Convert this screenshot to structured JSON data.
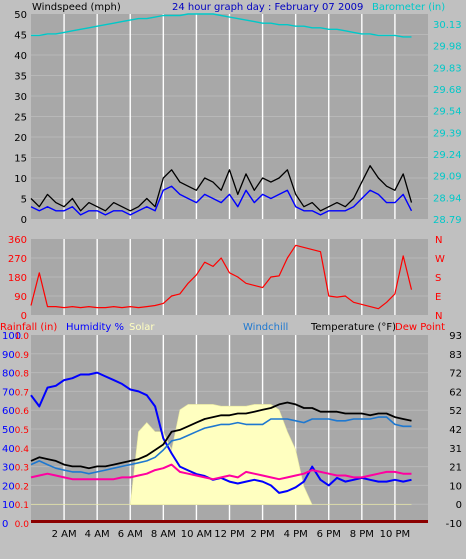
{
  "title": "24 hour graph day : February 07 2009",
  "colors": {
    "background": "#c0c0c0",
    "plot_bg": "#a8a8a8",
    "grid": "#ffffff",
    "barometer": "#00c8c8",
    "wind_avg": "#0000ff",
    "wind_gust": "#000000",
    "wind_dir": "#ff0000",
    "rainfall": "#ff0000",
    "humidity": "#0000ff",
    "solar": "#ffffc0",
    "windchill": "#1e78d0",
    "temperature": "#000000",
    "dew_point": "#ff00a0"
  },
  "chart_data": [
    {
      "type": "line",
      "ylabel": "Windspeed (mph)",
      "y2label": "Barometer (in)",
      "ylim": [
        0,
        50
      ],
      "yticks": [
        "50",
        "45",
        "40",
        "35",
        "30",
        "25",
        "20",
        "15",
        "10",
        "5",
        "0"
      ],
      "y2ticks": [
        "30.13",
        "29.98",
        "29.83",
        "29.68",
        "29.54",
        "29.39",
        "29.24",
        "29.09",
        "28.94",
        "28.79"
      ],
      "x": [
        0,
        0.5,
        1,
        1.5,
        2,
        2.5,
        3,
        3.5,
        4,
        4.5,
        5,
        5.5,
        6,
        6.5,
        7,
        7.5,
        8,
        8.5,
        9,
        9.5,
        10,
        10.5,
        11,
        11.5,
        12,
        12.5,
        13,
        13.5,
        14,
        14.5,
        15,
        15.5,
        16,
        16.5,
        17,
        17.5,
        18,
        18.5,
        19,
        19.5,
        20,
        20.5,
        21,
        21.5,
        22,
        22.5,
        23
      ],
      "series": [
        {
          "name": "Barometer (in)",
          "values": [
            29.99,
            29.99,
            30.0,
            30.0,
            30.01,
            30.02,
            30.03,
            30.04,
            30.05,
            30.06,
            30.07,
            30.08,
            30.09,
            30.1,
            30.1,
            30.11,
            30.12,
            30.12,
            30.12,
            30.13,
            30.13,
            30.13,
            30.13,
            30.12,
            30.11,
            30.1,
            30.09,
            30.08,
            30.07,
            30.07,
            30.06,
            30.06,
            30.05,
            30.05,
            30.04,
            30.04,
            30.03,
            30.03,
            30.02,
            30.01,
            30.0,
            30.0,
            29.99,
            29.99,
            29.99,
            29.98,
            29.98
          ]
        },
        {
          "name": "Gust",
          "values": [
            5,
            3,
            6,
            4,
            3,
            5,
            2,
            4,
            3,
            2,
            4,
            3,
            2,
            3,
            5,
            3,
            10,
            12,
            9,
            8,
            7,
            10,
            9,
            7,
            12,
            6,
            11,
            7,
            10,
            9,
            10,
            12,
            6,
            3,
            4,
            2,
            3,
            4,
            3,
            5,
            9,
            13,
            10,
            8,
            7,
            11,
            4
          ]
        },
        {
          "name": "Average",
          "values": [
            3,
            2,
            3,
            2,
            2,
            3,
            1,
            2,
            2,
            1,
            2,
            2,
            1,
            2,
            3,
            2,
            7,
            8,
            6,
            5,
            4,
            6,
            5,
            4,
            6,
            3,
            7,
            4,
            6,
            5,
            6,
            7,
            3,
            2,
            2,
            1,
            2,
            2,
            2,
            3,
            5,
            7,
            6,
            4,
            4,
            6,
            2
          ]
        }
      ]
    },
    {
      "type": "scatter",
      "ytitles": [
        "N",
        "W",
        "S",
        "E",
        "N"
      ],
      "yticks": [
        "360",
        "270",
        "180",
        "90",
        "0"
      ],
      "ylim": [
        0,
        360
      ],
      "x": [
        0,
        0.5,
        1,
        1.5,
        2,
        2.5,
        3,
        3.5,
        4,
        4.5,
        5,
        5.5,
        6,
        6.5,
        7,
        7.5,
        8,
        8.5,
        9,
        9.5,
        10,
        10.5,
        11,
        11.5,
        12,
        12.5,
        13,
        13.5,
        14,
        14.5,
        15,
        15.5,
        16,
        16.5,
        17,
        17.5,
        18,
        18.5,
        19,
        19.5,
        20,
        20.5,
        21,
        21.5,
        22,
        22.5,
        23
      ],
      "series": [
        {
          "name": "Wind Direction",
          "values": [
            45,
            200,
            40,
            40,
            35,
            40,
            35,
            40,
            35,
            35,
            40,
            35,
            40,
            35,
            40,
            45,
            55,
            90,
            100,
            150,
            190,
            250,
            230,
            270,
            200,
            180,
            150,
            140,
            130,
            180,
            185,
            270,
            330,
            320,
            310,
            300,
            90,
            85,
            90,
            60,
            50,
            40,
            30,
            60,
            100,
            280,
            120
          ]
        }
      ]
    },
    {
      "type": "line",
      "legend": [
        "Rainfall (in)",
        "Humidity %",
        "Solar",
        "Windchill",
        "Temperature (°F)",
        "Dew Point"
      ],
      "ylabel_rain_ticks": [
        "1.0",
        "0.9",
        "0.8",
        "0.7",
        "0.6",
        "0.5",
        "0.4",
        "0.3",
        "0.2",
        "0.1",
        "0.0"
      ],
      "ylabel_humidity_ticks": [
        "100",
        "90",
        "80",
        "70",
        "60",
        "50",
        "40",
        "30",
        "20",
        "10",
        "0"
      ],
      "ylabel_temp_ticks": [
        "93",
        "83",
        "72",
        "62",
        "52",
        "42",
        "31",
        "21",
        "10",
        "0",
        "-10"
      ],
      "ylim": [
        -10,
        93
      ],
      "x_tick_labels": [
        "2 AM",
        "4 AM",
        "6 AM",
        "8 AM",
        "10 AM",
        "12 PM",
        "2 PM",
        "4 PM",
        "6 PM",
        "8 PM",
        "10 PM"
      ],
      "x": [
        0,
        0.5,
        1,
        1.5,
        2,
        2.5,
        3,
        3.5,
        4,
        4.5,
        5,
        5.5,
        6,
        6.5,
        7,
        7.5,
        8,
        8.5,
        9,
        9.5,
        10,
        10.5,
        11,
        11.5,
        12,
        12.5,
        13,
        13.5,
        14,
        14.5,
        15,
        15.5,
        16,
        16.5,
        17,
        17.5,
        18,
        18.5,
        19,
        19.5,
        20,
        20.5,
        21,
        21.5,
        22,
        22.5,
        23
      ],
      "series": [
        {
          "name": "Humidity %",
          "values": [
            68,
            62,
            72,
            73,
            76,
            77,
            79,
            79,
            80,
            78,
            76,
            74,
            71,
            70,
            68,
            62,
            45,
            37,
            30,
            28,
            26,
            25,
            23,
            24,
            22,
            21,
            22,
            23,
            22,
            20,
            16,
            17,
            19,
            22,
            30,
            23,
            20,
            24,
            22,
            23,
            24,
            23,
            22,
            22,
            23,
            22,
            23
          ]
        },
        {
          "name": "Solar",
          "values": [
            0,
            0,
            0,
            0,
            0,
            0,
            0,
            0,
            0,
            0,
            0,
            0,
            0,
            40,
            45,
            40,
            40,
            30,
            52,
            55,
            55,
            55,
            55,
            54,
            54,
            54,
            54,
            55,
            55,
            55,
            52,
            40,
            30,
            10,
            0,
            0,
            0,
            0,
            0,
            0,
            0,
            0,
            0,
            0,
            0,
            0,
            0
          ]
        },
        {
          "name": "Windchill",
          "values": [
            22,
            24,
            22,
            20,
            19,
            18,
            18,
            17,
            18,
            19,
            20,
            21,
            22,
            23,
            24,
            26,
            30,
            35,
            36,
            38,
            40,
            42,
            43,
            44,
            44,
            45,
            44,
            44,
            44,
            47,
            47,
            47,
            46,
            45,
            47,
            47,
            47,
            46,
            46,
            47,
            47,
            47,
            48,
            48,
            44,
            43,
            43
          ]
        },
        {
          "name": "Temperature (°F)",
          "values": [
            24,
            26,
            25,
            24,
            22,
            21,
            21,
            20,
            21,
            21,
            22,
            23,
            24,
            25,
            27,
            30,
            33,
            40,
            41,
            43,
            45,
            47,
            48,
            49,
            49,
            50,
            50,
            51,
            52,
            53,
            55,
            56,
            55,
            53,
            53,
            51,
            51,
            51,
            50,
            50,
            50,
            49,
            50,
            50,
            48,
            47,
            46
          ]
        },
        {
          "name": "Dew Point",
          "values": [
            15,
            16,
            17,
            16,
            15,
            14,
            14,
            14,
            14,
            14,
            14,
            15,
            15,
            16,
            17,
            19,
            20,
            22,
            18,
            17,
            16,
            15,
            14,
            15,
            16,
            15,
            18,
            17,
            16,
            15,
            14,
            15,
            16,
            17,
            19,
            18,
            17,
            16,
            16,
            15,
            15,
            16,
            17,
            18,
            18,
            17,
            17
          ]
        },
        {
          "name": "Rainfall (in)",
          "values": [
            0,
            0,
            0,
            0,
            0,
            0,
            0,
            0,
            0,
            0,
            0,
            0,
            0,
            0,
            0,
            0,
            0,
            0,
            0,
            0,
            0,
            0,
            0,
            0,
            0,
            0,
            0,
            0,
            0,
            0,
            0,
            0,
            0,
            0,
            0,
            0,
            0,
            0,
            0,
            0,
            0,
            0,
            0,
            0,
            0,
            0,
            0
          ]
        }
      ]
    }
  ]
}
